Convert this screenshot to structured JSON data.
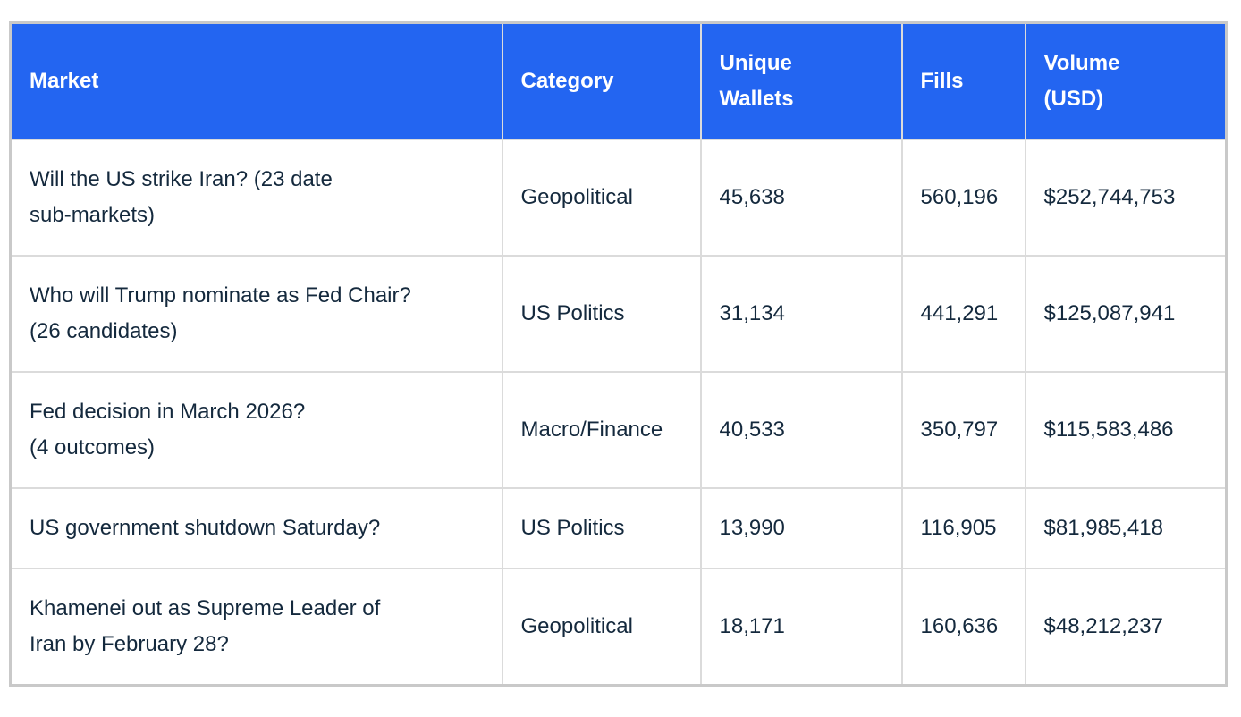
{
  "chart_data": {
    "type": "table",
    "title": "",
    "columns": [
      {
        "label": "Market",
        "lines": [
          "Market"
        ]
      },
      {
        "label": "Category",
        "lines": [
          "Category"
        ]
      },
      {
        "label": "Unique Wallets",
        "lines": [
          "Unique",
          "Wallets"
        ]
      },
      {
        "label": "Fills",
        "lines": [
          "Fills"
        ]
      },
      {
        "label": "Volume (USD)",
        "lines": [
          "Volume",
          "(USD)"
        ]
      }
    ],
    "rows": [
      {
        "market": "Will the US strike Iran? (23 date sub-markets)",
        "market_lines": [
          "Will the US strike Iran? (23 date",
          "sub-markets)"
        ],
        "category": "Geopolitical",
        "unique_wallets": "45,638",
        "fills": "560,196",
        "volume_usd": "$252,744,753"
      },
      {
        "market": "Who will Trump nominate as Fed Chair? (26 candidates)",
        "market_lines": [
          "Who will Trump nominate as Fed Chair?",
          "(26 candidates)"
        ],
        "category": "US Politics",
        "unique_wallets": "31,134",
        "fills": "441,291",
        "volume_usd": "$125,087,941"
      },
      {
        "market": "Fed decision in March 2026? (4 outcomes)",
        "market_lines": [
          "Fed decision in March 2026?",
          "(4 outcomes)"
        ],
        "category": "Macro/Finance",
        "unique_wallets": "40,533",
        "fills": "350,797",
        "volume_usd": "$115,583,486"
      },
      {
        "market": "US government shutdown Saturday?",
        "market_lines": [
          "US government shutdown Saturday?"
        ],
        "category": "US Politics",
        "unique_wallets": "13,990",
        "fills": "116,905",
        "volume_usd": "$81,985,418"
      },
      {
        "market": "Khamenei out as Supreme Leader of Iran by February 28?",
        "market_lines": [
          "Khamenei out as Supreme Leader of",
          "Iran by February 28?"
        ],
        "category": "Geopolitical",
        "unique_wallets": "18,171",
        "fills": "160,636",
        "volume_usd": "$48,212,237"
      }
    ]
  },
  "colors": {
    "header_bg": "#2365f1",
    "header_text": "#ffffff",
    "body_text": "#14293d",
    "grid_border": "#dbdbdb",
    "outer_border": "#c9c9c9",
    "page_bg": "#ffffff"
  }
}
